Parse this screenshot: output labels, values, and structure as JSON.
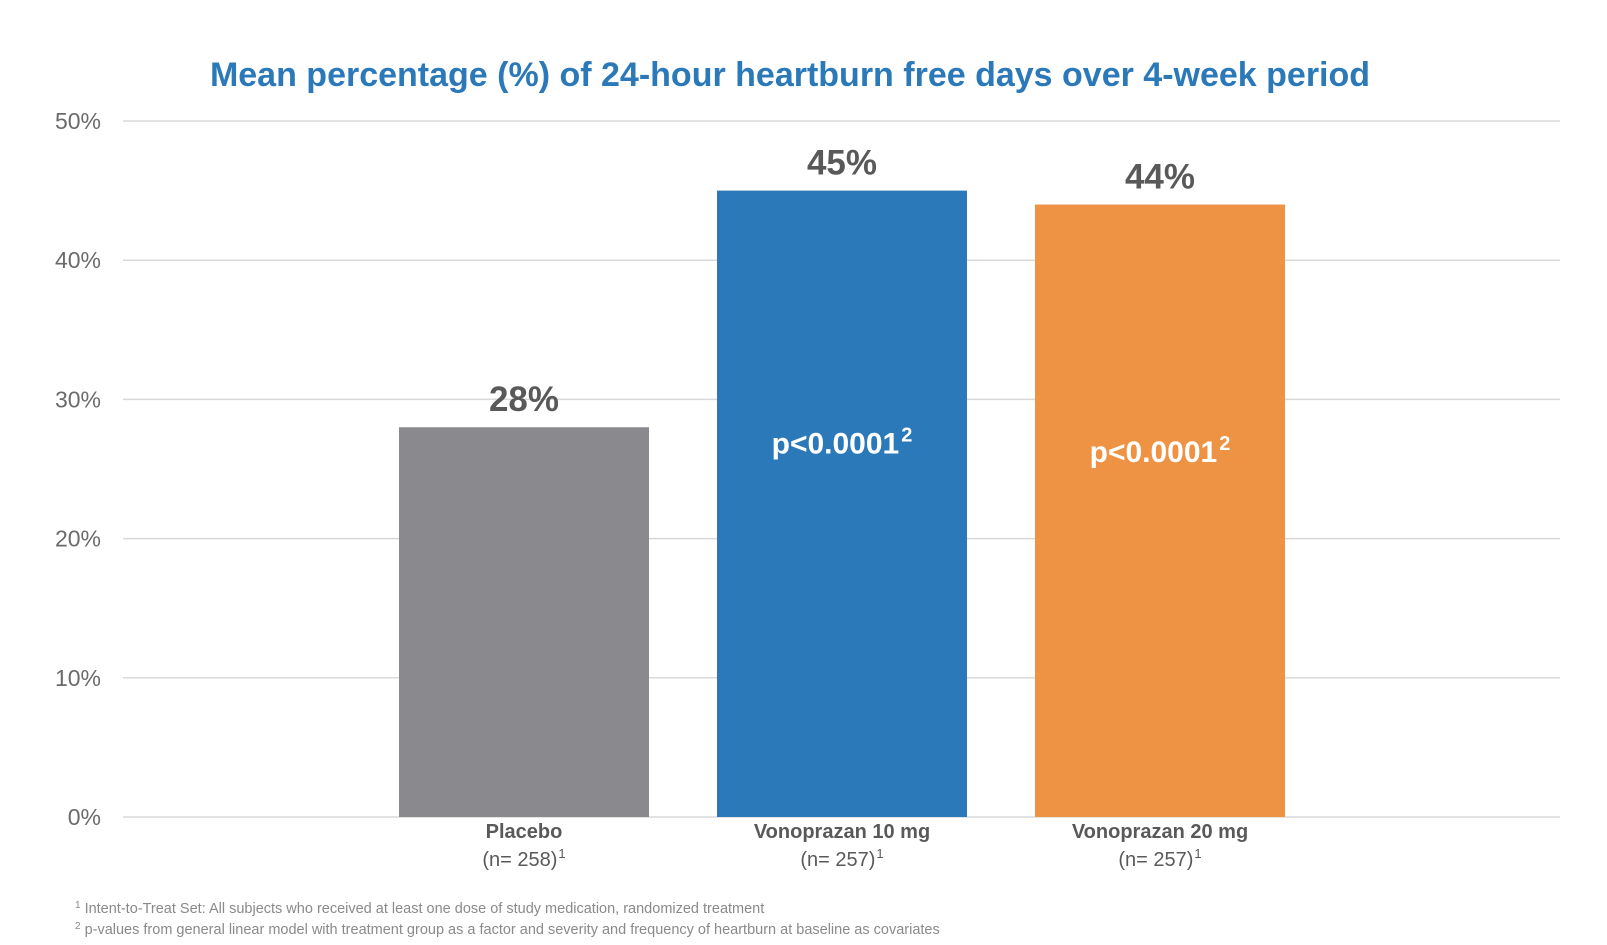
{
  "chart_data": {
    "type": "bar",
    "title": "Mean percentage (%) of 24-hour heartburn free days over 4-week period",
    "xlabel": "",
    "ylabel": "",
    "ylim": [
      0,
      50
    ],
    "yticks": [
      0,
      10,
      20,
      30,
      40,
      50
    ],
    "ytick_labels": [
      "0%",
      "10%",
      "20%",
      "30%",
      "40%",
      "50%"
    ],
    "grid": true,
    "legend": "none",
    "categories": [
      "Placebo",
      "Vonoprazan 10 mg",
      "Vonoprazan 20 mg"
    ],
    "category_n": [
      "(n= 258)",
      "(n= 257)",
      "(n= 257)"
    ],
    "category_n_sup": "1",
    "values": [
      28,
      45,
      44
    ],
    "value_labels": [
      "28%",
      "45%",
      "44%"
    ],
    "bar_annotations": [
      "",
      "p<0.0001",
      "p<0.0001"
    ],
    "bar_annotation_sup": "2",
    "colors": [
      "#8a8a8e",
      "#2b79b8",
      "#ee9344"
    ],
    "footnotes": [
      {
        "marker": "1",
        "text": "Intent-to-Treat Set: All subjects who received at least one dose of study medication, randomized treatment"
      },
      {
        "marker": "2",
        "text": "p-values from general linear model with treatment group as a factor and severity and frequency of heartburn at baseline as covariates"
      }
    ]
  }
}
